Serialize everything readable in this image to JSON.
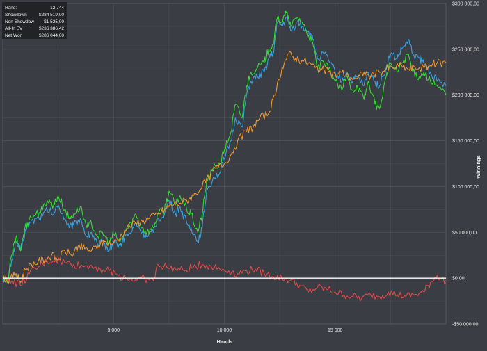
{
  "stats": [
    {
      "label": "Hand:",
      "value": "12 744"
    },
    {
      "label": "Showdown",
      "value": "$284 519,00"
    },
    {
      "label": "Non Showdow",
      "value": "$1 525,00"
    },
    {
      "label": "All-In EV",
      "value": "$236 386,42"
    },
    {
      "label": "Net Won",
      "value": "$286 044,00"
    }
  ],
  "colors": {
    "background": "#3a3d43",
    "plot_background": "#3a3d43",
    "grid": "#4d5158",
    "zero_line": "#ffffff",
    "stats_box": "#1f2125"
  },
  "chart_data": {
    "type": "line",
    "xlabel": "Hands",
    "ylabel": "Winnings",
    "xlim": [
      0,
      20000
    ],
    "ylim": [
      -50000,
      300000
    ],
    "x_ticks": [
      {
        "value": 5000,
        "label": "5 000"
      },
      {
        "value": 10000,
        "label": "10 000"
      },
      {
        "value": 15000,
        "label": "15 000"
      }
    ],
    "y_ticks": [
      {
        "value": 300000,
        "label": "$300 000,00"
      },
      {
        "value": 250000,
        "label": "$250 000,00"
      },
      {
        "value": 200000,
        "label": "$200 000,00"
      },
      {
        "value": 150000,
        "label": "$150 000,00"
      },
      {
        "value": 100000,
        "label": "$100 000,00"
      },
      {
        "value": 50000,
        "label": "$50 000,00"
      },
      {
        "value": 0,
        "label": "$0,00"
      },
      {
        "value": -50000,
        "label": "-$50 000,00"
      }
    ],
    "grid": true,
    "legend": "none",
    "series": [
      {
        "color": "#3aa0dc",
        "points": [
          [
            0,
            0
          ],
          [
            200,
            -5000
          ],
          [
            400,
            20000
          ],
          [
            600,
            40000
          ],
          [
            800,
            30000
          ],
          [
            1000,
            50000
          ],
          [
            1200,
            60000
          ],
          [
            1500,
            65000
          ],
          [
            1800,
            68000
          ],
          [
            2000,
            75000
          ],
          [
            2300,
            70000
          ],
          [
            2500,
            80000
          ],
          [
            2800,
            65000
          ],
          [
            3000,
            55000
          ],
          [
            3200,
            58000
          ],
          [
            3500,
            65000
          ],
          [
            3800,
            45000
          ],
          [
            4000,
            50000
          ],
          [
            4300,
            35000
          ],
          [
            4500,
            40000
          ],
          [
            4800,
            30000
          ],
          [
            5000,
            40000
          ],
          [
            5300,
            35000
          ],
          [
            5500,
            45000
          ],
          [
            5800,
            50000
          ],
          [
            6000,
            60000
          ],
          [
            6300,
            50000
          ],
          [
            6500,
            45000
          ],
          [
            6800,
            50000
          ],
          [
            7000,
            65000
          ],
          [
            7300,
            70000
          ],
          [
            7500,
            85000
          ],
          [
            7800,
            70000
          ],
          [
            8000,
            78000
          ],
          [
            8300,
            60000
          ],
          [
            8500,
            55000
          ],
          [
            8800,
            40000
          ],
          [
            9000,
            55000
          ],
          [
            9200,
            95000
          ],
          [
            9500,
            110000
          ],
          [
            9800,
            115000
          ],
          [
            10000,
            130000
          ],
          [
            10300,
            150000
          ],
          [
            10500,
            175000
          ],
          [
            10800,
            165000
          ],
          [
            11000,
            200000
          ],
          [
            11200,
            215000
          ],
          [
            11500,
            220000
          ],
          [
            11800,
            225000
          ],
          [
            12000,
            240000
          ],
          [
            12200,
            245000
          ],
          [
            12400,
            280000
          ],
          [
            12600,
            275000
          ],
          [
            12800,
            285000
          ],
          [
            13000,
            270000
          ],
          [
            13300,
            280000
          ],
          [
            13500,
            275000
          ],
          [
            13800,
            270000
          ],
          [
            14000,
            260000
          ],
          [
            14200,
            240000
          ],
          [
            14500,
            245000
          ],
          [
            14800,
            235000
          ],
          [
            15000,
            225000
          ],
          [
            15300,
            215000
          ],
          [
            15500,
            225000
          ],
          [
            15800,
            215000
          ],
          [
            16000,
            220000
          ],
          [
            16300,
            210000
          ],
          [
            16500,
            225000
          ],
          [
            16800,
            215000
          ],
          [
            17000,
            210000
          ],
          [
            17300,
            230000
          ],
          [
            17500,
            245000
          ],
          [
            17800,
            240000
          ],
          [
            18000,
            250000
          ],
          [
            18300,
            260000
          ],
          [
            18500,
            245000
          ],
          [
            18800,
            240000
          ],
          [
            19000,
            235000
          ],
          [
            19300,
            225000
          ],
          [
            19600,
            215000
          ],
          [
            20000,
            210000
          ]
        ]
      },
      {
        "color": "#35d935",
        "points": [
          [
            0,
            0
          ],
          [
            200,
            -5000
          ],
          [
            400,
            25000
          ],
          [
            600,
            45000
          ],
          [
            800,
            30000
          ],
          [
            1000,
            55000
          ],
          [
            1200,
            65000
          ],
          [
            1500,
            70000
          ],
          [
            1800,
            75000
          ],
          [
            2000,
            85000
          ],
          [
            2300,
            80000
          ],
          [
            2500,
            90000
          ],
          [
            2800,
            75000
          ],
          [
            3000,
            65000
          ],
          [
            3200,
            70000
          ],
          [
            3500,
            78000
          ],
          [
            3800,
            55000
          ],
          [
            4000,
            60000
          ],
          [
            4300,
            45000
          ],
          [
            4500,
            50000
          ],
          [
            4800,
            38000
          ],
          [
            5000,
            48000
          ],
          [
            5300,
            40000
          ],
          [
            5500,
            50000
          ],
          [
            5800,
            60000
          ],
          [
            6000,
            70000
          ],
          [
            6300,
            55000
          ],
          [
            6500,
            50000
          ],
          [
            6800,
            55000
          ],
          [
            7000,
            70000
          ],
          [
            7300,
            75000
          ],
          [
            7500,
            95000
          ],
          [
            7800,
            80000
          ],
          [
            8000,
            90000
          ],
          [
            8300,
            75000
          ],
          [
            8500,
            70000
          ],
          [
            8800,
            50000
          ],
          [
            9000,
            70000
          ],
          [
            9200,
            105000
          ],
          [
            9500,
            120000
          ],
          [
            9800,
            125000
          ],
          [
            10000,
            140000
          ],
          [
            10300,
            160000
          ],
          [
            10500,
            190000
          ],
          [
            10800,
            175000
          ],
          [
            11000,
            210000
          ],
          [
            11200,
            225000
          ],
          [
            11500,
            230000
          ],
          [
            11800,
            235000
          ],
          [
            12000,
            250000
          ],
          [
            12200,
            255000
          ],
          [
            12400,
            285000
          ],
          [
            12600,
            280000
          ],
          [
            12800,
            290000
          ],
          [
            13000,
            275000
          ],
          [
            13300,
            285000
          ],
          [
            13500,
            280000
          ],
          [
            13800,
            265000
          ],
          [
            14000,
            255000
          ],
          [
            14200,
            230000
          ],
          [
            14500,
            235000
          ],
          [
            14800,
            225000
          ],
          [
            15000,
            215000
          ],
          [
            15300,
            205000
          ],
          [
            15500,
            220000
          ],
          [
            15800,
            205000
          ],
          [
            16000,
            210000
          ],
          [
            16300,
            195000
          ],
          [
            16500,
            215000
          ],
          [
            16800,
            190000
          ],
          [
            17000,
            185000
          ],
          [
            17300,
            220000
          ],
          [
            17500,
            235000
          ],
          [
            17800,
            225000
          ],
          [
            18000,
            235000
          ],
          [
            18300,
            245000
          ],
          [
            18500,
            225000
          ],
          [
            18800,
            220000
          ],
          [
            19000,
            225000
          ],
          [
            19300,
            215000
          ],
          [
            19600,
            210000
          ],
          [
            20000,
            200000
          ]
        ]
      },
      {
        "color": "#f0962d",
        "points": [
          [
            0,
            0
          ],
          [
            300,
            -2000
          ],
          [
            600,
            5000
          ],
          [
            800,
            -5000
          ],
          [
            1000,
            10000
          ],
          [
            1300,
            15000
          ],
          [
            1600,
            18000
          ],
          [
            1900,
            20000
          ],
          [
            2200,
            25000
          ],
          [
            2500,
            20000
          ],
          [
            2800,
            30000
          ],
          [
            3100,
            25000
          ],
          [
            3400,
            35000
          ],
          [
            3700,
            32000
          ],
          [
            4000,
            30000
          ],
          [
            4300,
            35000
          ],
          [
            4600,
            40000
          ],
          [
            5000,
            38000
          ],
          [
            5300,
            45000
          ],
          [
            5600,
            55000
          ],
          [
            6000,
            60000
          ],
          [
            6300,
            62000
          ],
          [
            6600,
            65000
          ],
          [
            7000,
            70000
          ],
          [
            7300,
            75000
          ],
          [
            7600,
            80000
          ],
          [
            8000,
            82000
          ],
          [
            8300,
            85000
          ],
          [
            8600,
            90000
          ],
          [
            9000,
            100000
          ],
          [
            9300,
            110000
          ],
          [
            9600,
            120000
          ],
          [
            10000,
            125000
          ],
          [
            10300,
            135000
          ],
          [
            10600,
            150000
          ],
          [
            11000,
            160000
          ],
          [
            11300,
            165000
          ],
          [
            11600,
            175000
          ],
          [
            12000,
            180000
          ],
          [
            12300,
            200000
          ],
          [
            12600,
            230000
          ],
          [
            12900,
            245000
          ],
          [
            13200,
            240000
          ],
          [
            13500,
            238000
          ],
          [
            13800,
            235000
          ],
          [
            14100,
            230000
          ],
          [
            14400,
            228000
          ],
          [
            14700,
            225000
          ],
          [
            15000,
            222000
          ],
          [
            15300,
            225000
          ],
          [
            15600,
            220000
          ],
          [
            16000,
            218000
          ],
          [
            16300,
            225000
          ],
          [
            16600,
            220000
          ],
          [
            17000,
            225000
          ],
          [
            17300,
            228000
          ],
          [
            17600,
            230000
          ],
          [
            18000,
            232000
          ],
          [
            18300,
            228000
          ],
          [
            18600,
            230000
          ],
          [
            19000,
            230000
          ],
          [
            19300,
            232000
          ],
          [
            19600,
            235000
          ],
          [
            20000,
            235000
          ]
        ]
      },
      {
        "color": "#e64848",
        "points": [
          [
            0,
            0
          ],
          [
            400,
            -3000
          ],
          [
            800,
            -8000
          ],
          [
            1200,
            5000
          ],
          [
            1600,
            12000
          ],
          [
            2000,
            18000
          ],
          [
            2400,
            20000
          ],
          [
            2800,
            17000
          ],
          [
            3200,
            15000
          ],
          [
            3600,
            13000
          ],
          [
            4000,
            14000
          ],
          [
            4400,
            10000
          ],
          [
            4800,
            8000
          ],
          [
            5200,
            3000
          ],
          [
            5600,
            0
          ],
          [
            6000,
            -2000
          ],
          [
            6400,
            0
          ],
          [
            6800,
            -3000
          ],
          [
            7000,
            15000
          ],
          [
            7400,
            12000
          ],
          [
            7800,
            10000
          ],
          [
            8200,
            8000
          ],
          [
            8600,
            12000
          ],
          [
            9000,
            15000
          ],
          [
            9400,
            13000
          ],
          [
            9800,
            10000
          ],
          [
            10200,
            8000
          ],
          [
            10600,
            5000
          ],
          [
            11000,
            8000
          ],
          [
            11400,
            10000
          ],
          [
            11800,
            5000
          ],
          [
            12200,
            2000
          ],
          [
            12600,
            0
          ],
          [
            13000,
            -2000
          ],
          [
            13400,
            -8000
          ],
          [
            13800,
            -15000
          ],
          [
            14200,
            -10000
          ],
          [
            14600,
            -12000
          ],
          [
            15000,
            -15000
          ],
          [
            15400,
            -18000
          ],
          [
            15800,
            -20000
          ],
          [
            16200,
            -22000
          ],
          [
            16600,
            -18000
          ],
          [
            17000,
            -20000
          ],
          [
            17400,
            -15000
          ],
          [
            17800,
            -18000
          ],
          [
            18200,
            -20000
          ],
          [
            18600,
            -18000
          ],
          [
            19000,
            -15000
          ],
          [
            19300,
            -5000
          ],
          [
            19600,
            3000
          ],
          [
            20000,
            -5000
          ]
        ]
      }
    ]
  }
}
